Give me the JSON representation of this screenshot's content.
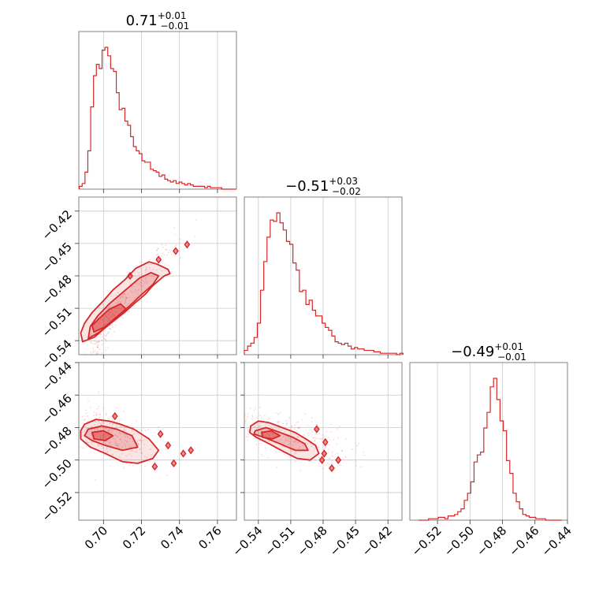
{
  "chart_data": {
    "type": "corner",
    "color": "#d62728",
    "parameters": [
      {
        "title_value": "0.71",
        "title_plus": "+0.01",
        "title_minus": "−0.01",
        "range": [
          0.687,
          0.77
        ],
        "ticks": [
          0.7,
          0.72,
          0.74,
          0.76
        ],
        "tick_labels": [
          "0.70",
          "0.72",
          "0.74",
          "0.76"
        ],
        "hist_x": [
          0.688,
          0.6895,
          0.691,
          0.6925,
          0.694,
          0.6955,
          0.697,
          0.6985,
          0.7,
          0.7015,
          0.703,
          0.7045,
          0.706,
          0.7075,
          0.709,
          0.7105,
          0.712,
          0.7135,
          0.715,
          0.7165,
          0.718,
          0.7195,
          0.721,
          0.7225,
          0.724,
          0.7255,
          0.727,
          0.7285,
          0.73,
          0.7315,
          0.733,
          0.7345,
          0.736,
          0.7375,
          0.739,
          0.7405,
          0.742,
          0.7435,
          0.745,
          0.7465,
          0.748,
          0.7495,
          0.751,
          0.7525,
          0.754,
          0.7555,
          0.757,
          0.7585,
          0.76,
          0.7615,
          0.763,
          0.7645,
          0.766,
          0.7675,
          0.769
        ],
        "hist_y": [
          2,
          4,
          12,
          27,
          58,
          80,
          88,
          85,
          98,
          100,
          94,
          85,
          83,
          68,
          56,
          57,
          48,
          45,
          37,
          30,
          27,
          25,
          20,
          19,
          19,
          14,
          13,
          12,
          9,
          10,
          7,
          6,
          5,
          6,
          4,
          5,
          4,
          3,
          4,
          3,
          2,
          2,
          2,
          2,
          1,
          2,
          1,
          1,
          1,
          1,
          0,
          0,
          0,
          0,
          0
        ]
      },
      {
        "title_value": "−0.51",
        "title_plus": "+0.03",
        "title_minus": "−0.02",
        "range": [
          -0.553,
          -0.407
        ],
        "ticks": [
          -0.54,
          -0.51,
          -0.48,
          -0.45,
          -0.42
        ],
        "tick_labels": [
          "−0.54",
          "−0.51",
          "−0.48",
          "−0.45",
          "−0.42"
        ],
        "hist_x": [
          -0.5515,
          -0.5485,
          -0.5455,
          -0.5425,
          -0.5395,
          -0.5365,
          -0.5335,
          -0.5305,
          -0.5275,
          -0.5245,
          -0.5215,
          -0.5185,
          -0.5155,
          -0.5125,
          -0.5095,
          -0.5065,
          -0.5035,
          -0.5005,
          -0.4975,
          -0.4945,
          -0.4915,
          -0.4885,
          -0.4855,
          -0.4825,
          -0.4795,
          -0.4765,
          -0.4735,
          -0.4705,
          -0.4675,
          -0.4645,
          -0.4615,
          -0.4585,
          -0.4555,
          -0.4525,
          -0.4495,
          -0.4465,
          -0.4435,
          -0.4405,
          -0.4375,
          -0.4345,
          -0.4315,
          -0.4285,
          -0.4255,
          -0.4225,
          -0.4195,
          -0.4165,
          -0.4135,
          -0.4105,
          -0.4075
        ],
        "hist_y": [
          3,
          6,
          8,
          12,
          22,
          45,
          65,
          82,
          94,
          93,
          99,
          92,
          87,
          79,
          77,
          64,
          59,
          44,
          45,
          35,
          38,
          31,
          27,
          27,
          22,
          19,
          17,
          13,
          9,
          8,
          7,
          8,
          6,
          4,
          5,
          4,
          4,
          3,
          3,
          3,
          2,
          2,
          1,
          1,
          1,
          1,
          1,
          0,
          1
        ]
      },
      {
        "title_value": "−0.49",
        "title_plus": "+0.01",
        "title_minus": "−0.01",
        "range": [
          -0.537,
          -0.44
        ],
        "ticks": [
          -0.52,
          -0.5,
          -0.48,
          -0.46,
          -0.44
        ],
        "tick_labels": [
          "−0.52",
          "−0.50",
          "−0.48",
          "−0.46",
          "−0.44"
        ],
        "hist_x": [
          -0.5305,
          -0.5285,
          -0.5265,
          -0.5245,
          -0.5225,
          -0.5205,
          -0.5185,
          -0.5165,
          -0.5145,
          -0.5125,
          -0.5105,
          -0.5085,
          -0.5065,
          -0.5045,
          -0.5025,
          -0.5005,
          -0.4985,
          -0.4965,
          -0.4945,
          -0.4925,
          -0.4905,
          -0.4885,
          -0.4865,
          -0.4845,
          -0.4825,
          -0.4805,
          -0.4785,
          -0.4765,
          -0.4745,
          -0.4725,
          -0.4705,
          -0.4685,
          -0.4665,
          -0.4645,
          -0.4625,
          -0.4605,
          -0.4585,
          -0.4565,
          -0.4545,
          -0.4525,
          -0.4505,
          -0.4485,
          -0.4465,
          -0.4445
        ],
        "hist_y": [
          0,
          0,
          0,
          1,
          1,
          1,
          2,
          2,
          1,
          3,
          3,
          4,
          6,
          8,
          14,
          19,
          27,
          41,
          46,
          48,
          65,
          76,
          94,
          100,
          85,
          70,
          63,
          42,
          33,
          19,
          13,
          8,
          4,
          3,
          2,
          2,
          1,
          1,
          1,
          0,
          0,
          0,
          0,
          0
        ]
      }
    ],
    "pairs": [
      {
        "x_param": 0,
        "y_param": 1,
        "rho": 0.97,
        "mean": [
          0.705,
          -0.515
        ],
        "sd": [
          0.0085,
          0.022
        ],
        "outer_contour": [
          [
            0.689,
            -0.541
          ],
          [
            0.695,
            -0.537
          ],
          [
            0.703,
            -0.525
          ],
          [
            0.711,
            -0.514
          ],
          [
            0.716,
            -0.506
          ],
          [
            0.722,
            -0.497
          ],
          [
            0.726,
            -0.489
          ],
          [
            0.732,
            -0.48
          ],
          [
            0.735,
            -0.478
          ],
          [
            0.734,
            -0.474
          ],
          [
            0.728,
            -0.469
          ],
          [
            0.724,
            -0.467
          ],
          [
            0.717,
            -0.473
          ],
          [
            0.711,
            -0.484
          ],
          [
            0.705,
            -0.493
          ],
          [
            0.7,
            -0.503
          ],
          [
            0.694,
            -0.514
          ],
          [
            0.69,
            -0.524
          ],
          [
            0.688,
            -0.533
          ]
        ],
        "mid_contour": [
          [
            0.692,
            -0.538
          ],
          [
            0.698,
            -0.532
          ],
          [
            0.705,
            -0.521
          ],
          [
            0.713,
            -0.509
          ],
          [
            0.719,
            -0.499
          ],
          [
            0.726,
            -0.488
          ],
          [
            0.729,
            -0.48
          ],
          [
            0.725,
            -0.477
          ],
          [
            0.719,
            -0.482
          ],
          [
            0.711,
            -0.494
          ],
          [
            0.703,
            -0.506
          ],
          [
            0.697,
            -0.517
          ],
          [
            0.693,
            -0.527
          ]
        ],
        "inner_contour": [
          [
            0.695,
            -0.532
          ],
          [
            0.701,
            -0.527
          ],
          [
            0.707,
            -0.518
          ],
          [
            0.712,
            -0.511
          ],
          [
            0.709,
            -0.506
          ],
          [
            0.703,
            -0.511
          ],
          [
            0.698,
            -0.519
          ],
          [
            0.694,
            -0.526
          ]
        ],
        "islands": [
          [
            0.729,
            -0.465
          ],
          [
            0.738,
            -0.457
          ],
          [
            0.744,
            -0.451
          ],
          [
            0.714,
            -0.48
          ]
        ]
      },
      {
        "x_param": 0,
        "y_param": 2,
        "rho": -0.55,
        "mean": [
          0.703,
          -0.485
        ],
        "sd": [
          0.0085,
          0.006
        ],
        "outer_contour": [
          [
            0.69,
            -0.478
          ],
          [
            0.696,
            -0.475
          ],
          [
            0.703,
            -0.476
          ],
          [
            0.709,
            -0.478
          ],
          [
            0.716,
            -0.481
          ],
          [
            0.724,
            -0.487
          ],
          [
            0.729,
            -0.494
          ],
          [
            0.726,
            -0.499
          ],
          [
            0.718,
            -0.502
          ],
          [
            0.71,
            -0.501
          ],
          [
            0.701,
            -0.496
          ],
          [
            0.693,
            -0.492
          ],
          [
            0.688,
            -0.487
          ],
          [
            0.688,
            -0.482
          ]
        ],
        "mid_contour": [
          [
            0.692,
            -0.481
          ],
          [
            0.699,
            -0.479
          ],
          [
            0.707,
            -0.481
          ],
          [
            0.715,
            -0.485
          ],
          [
            0.718,
            -0.492
          ],
          [
            0.71,
            -0.494
          ],
          [
            0.701,
            -0.491
          ],
          [
            0.694,
            -0.488
          ],
          [
            0.69,
            -0.485
          ]
        ],
        "inner_contour": [
          [
            0.694,
            -0.483
          ],
          [
            0.7,
            -0.482
          ],
          [
            0.705,
            -0.485
          ],
          [
            0.701,
            -0.488
          ],
          [
            0.695,
            -0.487
          ]
        ],
        "islands": [
          [
            0.706,
            -0.473
          ],
          [
            0.73,
            -0.484
          ],
          [
            0.734,
            -0.491
          ],
          [
            0.742,
            -0.496
          ],
          [
            0.737,
            -0.502
          ],
          [
            0.727,
            -0.504
          ],
          [
            0.746,
            -0.494
          ]
        ]
      },
      {
        "x_param": 1,
        "y_param": 2,
        "rho": -0.6,
        "mean": [
          -0.517,
          -0.485
        ],
        "sd": [
          0.021,
          0.006
        ],
        "outer_contour": [
          [
            -0.547,
            -0.479
          ],
          [
            -0.54,
            -0.476
          ],
          [
            -0.53,
            -0.477
          ],
          [
            -0.518,
            -0.48
          ],
          [
            -0.506,
            -0.483
          ],
          [
            -0.496,
            -0.487
          ],
          [
            -0.487,
            -0.491
          ],
          [
            -0.484,
            -0.496
          ],
          [
            -0.492,
            -0.5
          ],
          [
            -0.504,
            -0.499
          ],
          [
            -0.516,
            -0.495
          ],
          [
            -0.53,
            -0.49
          ],
          [
            -0.542,
            -0.486
          ],
          [
            -0.548,
            -0.483
          ]
        ],
        "mid_contour": [
          [
            -0.543,
            -0.482
          ],
          [
            -0.533,
            -0.48
          ],
          [
            -0.52,
            -0.483
          ],
          [
            -0.508,
            -0.486
          ],
          [
            -0.497,
            -0.49
          ],
          [
            -0.494,
            -0.494
          ],
          [
            -0.506,
            -0.494
          ],
          [
            -0.52,
            -0.49
          ],
          [
            -0.535,
            -0.486
          ],
          [
            -0.544,
            -0.484
          ]
        ],
        "inner_contour": [
          [
            -0.537,
            -0.483
          ],
          [
            -0.528,
            -0.482
          ],
          [
            -0.52,
            -0.485
          ],
          [
            -0.527,
            -0.487
          ],
          [
            -0.536,
            -0.486
          ]
        ],
        "islands": [
          [
            -0.486,
            -0.481
          ],
          [
            -0.478,
            -0.489
          ],
          [
            -0.479,
            -0.496
          ],
          [
            -0.481,
            -0.5
          ],
          [
            -0.466,
            -0.5
          ],
          [
            -0.472,
            -0.505
          ]
        ]
      }
    ]
  }
}
